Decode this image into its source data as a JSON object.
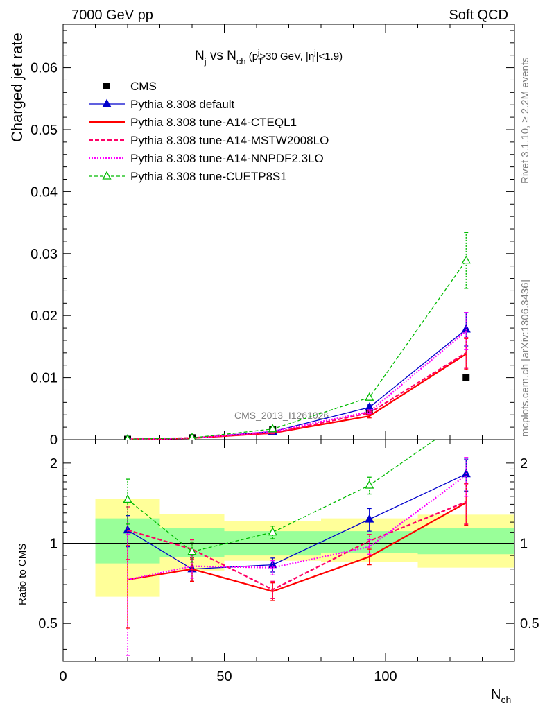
{
  "header": {
    "left": "7000 GeV pp",
    "right": "Soft QCD"
  },
  "side": {
    "rivet": "Rivet 3.1.10, ≥ 2.2M events",
    "mcplots": "mcplots.cern.ch [arXiv:1306.3436]"
  },
  "watermark": "CMS_2013_I1261026",
  "colors": {
    "cms": "#000000",
    "default": "#0000cc",
    "cteql1": "#ff0000",
    "mstw": "#ff0066",
    "nnpdf": "#ff00ff",
    "cuetp8s1": "#00bb00",
    "band_outer": "#ffff99",
    "band_inner": "#99ff99"
  },
  "chart_data": [
    {
      "id": "main",
      "type": "line",
      "title": "N_j vs N_ch (p_T^j>30 GeV, |η^j|<1.9)",
      "title_parts": {
        "a": "N",
        "a_sub": "j",
        "b": " vs N",
        "b_sub": "ch",
        "c": " (p",
        "c_sub": "T",
        "c_sup": "j",
        "d": ">30 GeV, |η",
        "d_sup": "j",
        "e": "|<1.9)"
      },
      "ylabel": "Charged jet rate",
      "xlim": [
        0,
        140
      ],
      "ylim": [
        0,
        0.067
      ],
      "yticks": [
        0,
        0.01,
        0.02,
        0.03,
        0.04,
        0.05,
        0.06
      ],
      "ytick_labels": [
        "0",
        "0.01",
        "0.02",
        "0.03",
        "0.04",
        "0.05",
        "0.06"
      ],
      "x": [
        20,
        40,
        65,
        95,
        125
      ],
      "legend_position": "top-left",
      "series": [
        {
          "key": "cms",
          "name": "CMS",
          "y": [
            5e-05,
            0.0003,
            0.0016,
            0.0045,
            0.01
          ]
        },
        {
          "key": "default",
          "name": "Pythia 8.308 default",
          "y": [
            6e-05,
            0.00025,
            0.0013,
            0.0052,
            0.0178
          ],
          "err": [
            1e-05,
            3e-05,
            0.0001,
            0.0004,
            0.0027
          ]
        },
        {
          "key": "cteql1",
          "name": "Pythia 8.308 tune-A14-CTEQL1",
          "y": [
            4e-05,
            0.00024,
            0.00105,
            0.0038,
            0.0138
          ],
          "err": [
            1e-05,
            3e-05,
            0.0001,
            0.0003,
            0.0025
          ]
        },
        {
          "key": "mstw",
          "name": "Pythia 8.308 tune-A14-MSTW2008LO",
          "y": [
            6e-05,
            0.00028,
            0.00105,
            0.0043,
            0.014
          ],
          "err": [
            1e-05,
            3e-05,
            0.0001,
            0.0003,
            0.0025
          ]
        },
        {
          "key": "nnpdf",
          "name": "Pythia 8.308 tune-A14-NNPDF2.3LO",
          "y": [
            4e-05,
            0.00024,
            0.0013,
            0.0045,
            0.0175
          ],
          "err": [
            1e-05,
            3e-05,
            0.0001,
            0.0003,
            0.003
          ]
        },
        {
          "key": "cuetp8s1",
          "name": "Pythia 8.308 tune-CUETP8S1",
          "y": [
            7e-05,
            0.00028,
            0.0017,
            0.0068,
            0.0289
          ],
          "err": [
            1e-05,
            3e-05,
            0.0001,
            0.0004,
            0.0045
          ]
        }
      ]
    },
    {
      "id": "ratio",
      "type": "line",
      "ylabel": "Ratio to CMS",
      "xlabel": "N_ch",
      "xlabel_parts": {
        "a": "N",
        "a_sub": "ch"
      },
      "scale": "log",
      "xlim": [
        0,
        140
      ],
      "ylim": [
        0.36,
        2.45
      ],
      "yticks": [
        0.5,
        1,
        2
      ],
      "ytick_labels": [
        "0.5",
        "1",
        "2"
      ],
      "xticks": [
        0,
        50,
        100
      ],
      "xtick_labels": [
        "0",
        "50",
        "100"
      ],
      "x": [
        20,
        40,
        65,
        95,
        125
      ],
      "bands": [
        {
          "x0": 10,
          "x1": 30,
          "inner": [
            0.84,
            1.24
          ],
          "outer": [
            0.63,
            1.47
          ]
        },
        {
          "x0": 30,
          "x1": 50,
          "inner": [
            0.89,
            1.14
          ],
          "outer": [
            0.79,
            1.29
          ]
        },
        {
          "x0": 50,
          "x1": 80,
          "inner": [
            0.9,
            1.11
          ],
          "outer": [
            0.86,
            1.21
          ]
        },
        {
          "x0": 80,
          "x1": 110,
          "inner": [
            0.92,
            1.11
          ],
          "outer": [
            0.85,
            1.24
          ]
        },
        {
          "x0": 110,
          "x1": 140,
          "inner": [
            0.91,
            1.14
          ],
          "outer": [
            0.81,
            1.28
          ]
        }
      ],
      "series": [
        {
          "key": "default",
          "y": [
            1.12,
            0.8,
            0.83,
            1.23,
            1.82
          ],
          "err": [
            0.15,
            0.08,
            0.05,
            0.12,
            0.25
          ]
        },
        {
          "key": "cteql1",
          "y": [
            0.73,
            0.8,
            0.66,
            0.89,
            1.42
          ],
          "err": [
            0.25,
            0.08,
            0.05,
            0.06,
            0.25
          ]
        },
        {
          "key": "mstw",
          "y": [
            1.12,
            0.95,
            0.67,
            1.02,
            1.43
          ],
          "err": [
            0.25,
            0.08,
            0.05,
            0.06,
            0.25
          ]
        },
        {
          "key": "nnpdf",
          "y": [
            0.73,
            0.82,
            0.81,
            0.97,
            1.8
          ],
          "err": [
            0.35,
            0.08,
            0.05,
            0.06,
            0.3
          ]
        },
        {
          "key": "cuetp8s1",
          "y": [
            1.46,
            0.93,
            1.1,
            1.65,
            2.95
          ],
          "err": [
            0.28,
            0.08,
            0.06,
            0.12,
            0.45
          ]
        }
      ]
    }
  ]
}
